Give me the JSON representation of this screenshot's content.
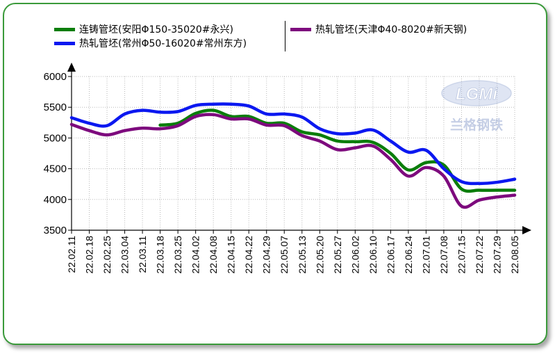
{
  "legend": {
    "items": [
      {
        "label": "连铸管坯(安阳Φ150-35020#永兴)",
        "color": "#0a7d0a"
      },
      {
        "label": "热轧管坯(常州Φ50-16020#常州东方)",
        "color": "#0b18f0"
      },
      {
        "label": "热轧管坯(天津Φ40-8020#新天钢)",
        "color": "#7d0a7d"
      }
    ]
  },
  "watermark": {
    "logo": "LGMi",
    "text": "兰格钢铁"
  },
  "chart_data": {
    "type": "line",
    "title": "",
    "xlabel": "",
    "ylabel": "",
    "ylim": [
      3500,
      6000
    ],
    "yticks": [
      3500,
      4000,
      4500,
      5000,
      5500,
      6000
    ],
    "grid": true,
    "legend_position": "top",
    "categories": [
      "22.02.11",
      "22.02.18",
      "22.02.25",
      "22.03.04",
      "22.03.11",
      "22.03.18",
      "22.03.25",
      "22.04.02",
      "22.04.08",
      "22.04.15",
      "22.04.22",
      "22.04.29",
      "22.05.07",
      "22.05.13",
      "22.05.20",
      "22.05.27",
      "22.06.02",
      "22.06.10",
      "22.06.17",
      "22.06.24",
      "22.07.01",
      "22.07.08",
      "22.07.15",
      "22.07.22",
      "22.07.29",
      "22.08.05"
    ],
    "series": [
      {
        "name": "连铸管坯(安阳Φ150-35020#永兴)",
        "color": "#0a7d0a",
        "values": [
          null,
          null,
          null,
          null,
          null,
          5210,
          5240,
          5400,
          5450,
          5350,
          5350,
          5240,
          5240,
          5100,
          5050,
          4950,
          4940,
          4930,
          4750,
          4480,
          4600,
          4560,
          4170,
          4150,
          4150,
          4150
        ]
      },
      {
        "name": "热轧管坯(常州Φ50-16020#常州东方)",
        "color": "#0b18f0",
        "values": [
          5330,
          5240,
          5200,
          5390,
          5450,
          5420,
          5430,
          5530,
          5550,
          5550,
          5520,
          5390,
          5390,
          5340,
          5150,
          5070,
          5080,
          5130,
          4950,
          4770,
          4800,
          4500,
          4290,
          4260,
          4280,
          4330
        ]
      },
      {
        "name": "热轧管坯(天津Φ40-8020#新天钢)",
        "color": "#7d0a7d",
        "values": [
          5220,
          5120,
          5050,
          5120,
          5160,
          5150,
          5200,
          5350,
          5380,
          5310,
          5310,
          5210,
          5200,
          5040,
          4950,
          4810,
          4840,
          4870,
          4650,
          4380,
          4520,
          4380,
          3890,
          3990,
          4040,
          4070
        ]
      }
    ]
  }
}
